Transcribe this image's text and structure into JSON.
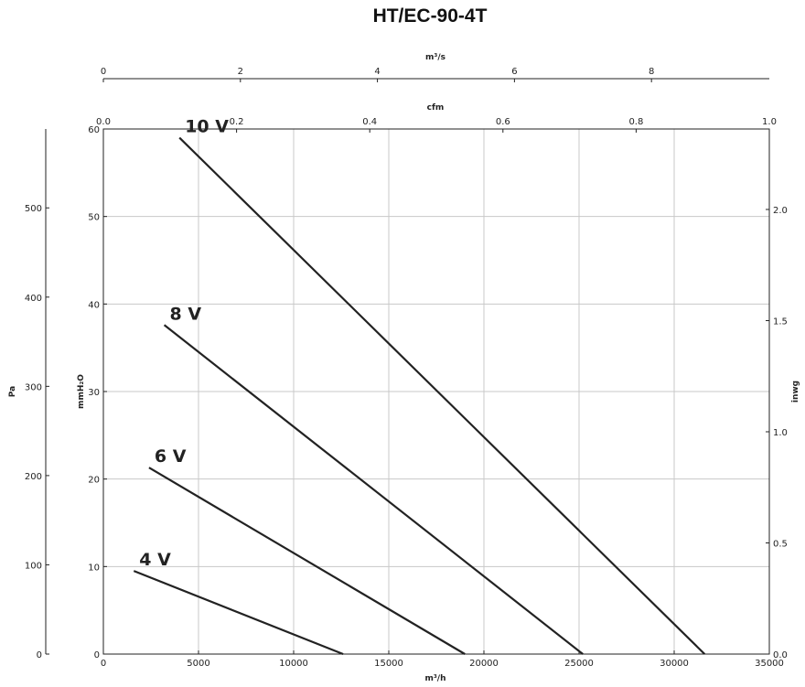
{
  "chart_data": {
    "type": "line",
    "title": "HT/EC-90-4T",
    "xlabel": "m³/h",
    "ylabel": "mmH₂O",
    "xlim": [
      0,
      35000
    ],
    "ylim": [
      0,
      60
    ],
    "grid": true,
    "x_ticks": [
      "0",
      "5000",
      "10000",
      "15000",
      "20000",
      "25000",
      "30000",
      "35000"
    ],
    "y_ticks": [
      "0",
      "10",
      "20",
      "30",
      "40",
      "50",
      "60"
    ],
    "secondary_axes": {
      "top_outer": {
        "label": "m³/s",
        "ticks": [
          "0",
          "2",
          "4",
          "6",
          "8"
        ],
        "range": [
          0,
          9.72
        ]
      },
      "top_inner": {
        "label": "cfm",
        "ticks": [
          "0.0",
          "0.2",
          "0.4",
          "0.6",
          "0.8",
          "1.0"
        ],
        "range": [
          0,
          1.0
        ]
      },
      "left_outer": {
        "label": "Pa",
        "ticks": [
          "0",
          "100",
          "200",
          "300",
          "400",
          "500"
        ],
        "range": [
          0,
          588.4
        ]
      },
      "right": {
        "label": "inwg",
        "ticks": [
          "0.0",
          "0.5",
          "1.0",
          "1.5",
          "2.0"
        ],
        "range": [
          0,
          2.362
        ]
      }
    },
    "series": [
      {
        "name": "10 V",
        "x": [
          4000,
          31600
        ],
        "y": [
          59.0,
          0
        ]
      },
      {
        "name": "8 V",
        "x": [
          3200,
          25200
        ],
        "y": [
          37.6,
          0
        ]
      },
      {
        "name": "6 V",
        "x": [
          2400,
          19000
        ],
        "y": [
          21.3,
          0
        ]
      },
      {
        "name": "4 V",
        "x": [
          1600,
          12600
        ],
        "y": [
          9.5,
          0
        ]
      }
    ]
  }
}
